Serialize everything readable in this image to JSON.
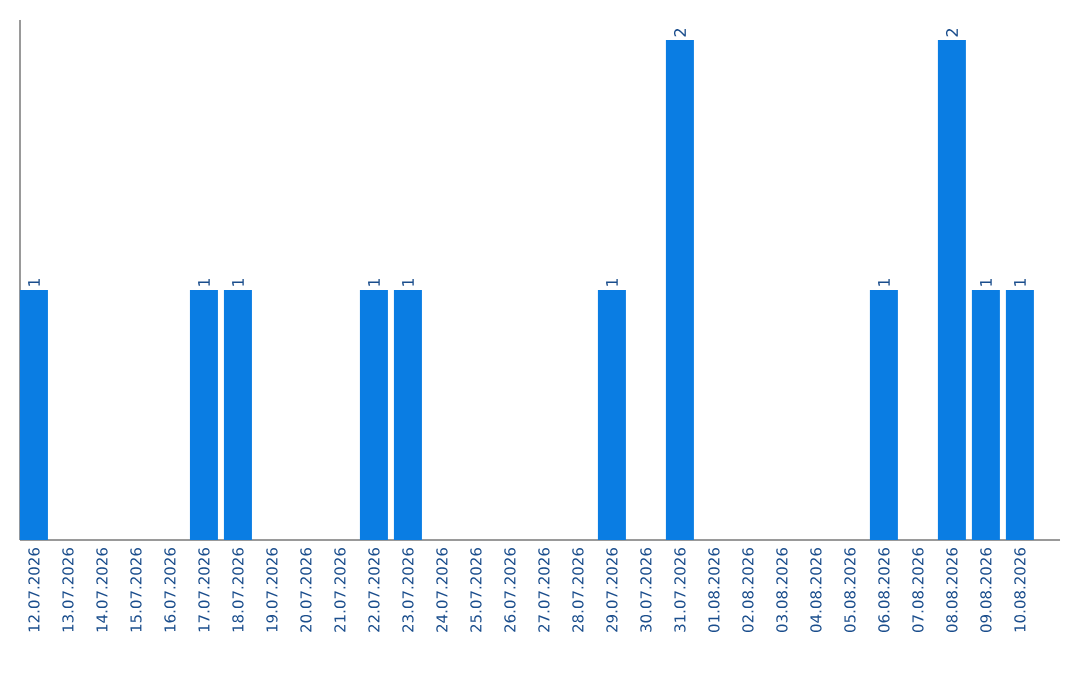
{
  "chart_data": {
    "type": "bar",
    "color": "#0a7de3",
    "categories": [
      "12.07.2026",
      "13.07.2026",
      "14.07.2026",
      "15.07.2026",
      "16.07.2026",
      "17.07.2026",
      "18.07.2026",
      "19.07.2026",
      "20.07.2026",
      "21.07.2026",
      "22.07.2026",
      "23.07.2026",
      "24.07.2026",
      "25.07.2026",
      "26.07.2026",
      "27.07.2026",
      "28.07.2026",
      "29.07.2026",
      "30.07.2026",
      "31.07.2026",
      "01.08.2026",
      "02.08.2026",
      "03.08.2026",
      "04.08.2026",
      "05.08.2026",
      "06.08.2026",
      "07.08.2026",
      "08.08.2026",
      "09.08.2026",
      "10.08.2026"
    ],
    "values": [
      1,
      0,
      0,
      0,
      0,
      1,
      1,
      0,
      0,
      0,
      1,
      1,
      0,
      0,
      0,
      0,
      0,
      1,
      0,
      2,
      0,
      0,
      0,
      0,
      0,
      1,
      0,
      2,
      1,
      1
    ],
    "value_labels": [
      "1",
      null,
      null,
      null,
      null,
      "1",
      "1",
      null,
      null,
      null,
      "1",
      "1",
      null,
      null,
      null,
      null,
      null,
      "1",
      null,
      "2",
      null,
      null,
      null,
      null,
      null,
      "1",
      null,
      "2",
      "1",
      "1"
    ],
    "tick_labels": "x",
    "grid": false
  }
}
